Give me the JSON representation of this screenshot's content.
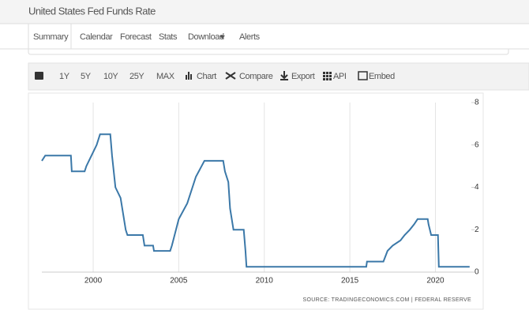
{
  "page": {
    "title": "United States Fed Funds Rate",
    "tabs": [
      "Summary",
      "Calendar",
      "Forecast",
      "Stats",
      "Download",
      "Alerts"
    ],
    "toolbar": [
      "1Y",
      "5Y",
      "10Y",
      "25Y",
      "MAX",
      "Chart",
      "Compare",
      "Export",
      "API",
      "Embed"
    ]
  },
  "chart_data": {
    "type": "line",
    "x": [
      1997,
      1997.2,
      1998.7,
      1998.75,
      1999.5,
      1999.6,
      1999.9,
      2000.2,
      2000.4,
      2001.0,
      2001.1,
      2001.3,
      2001.6,
      2001.9,
      2002.0,
      2002.9,
      2003.0,
      2003.5,
      2003.55,
      2004.5,
      2004.6,
      2005.0,
      2005.5,
      2006.0,
      2006.5,
      2007.6,
      2007.7,
      2007.9,
      2008.0,
      2008.2,
      2008.8,
      2008.9,
      2008.96,
      2015.96,
      2016.0,
      2016.96,
      2017.2,
      2017.5,
      2017.96,
      2018.2,
      2018.5,
      2018.75,
      2018.96,
      2019.55,
      2019.6,
      2019.75,
      2020.15,
      2020.2,
      2022.0
    ],
    "series": [
      {
        "color": "#3b78a8",
        "values": [
          5.25,
          5.5,
          5.5,
          4.75,
          4.75,
          5.0,
          5.5,
          6.0,
          6.5,
          6.5,
          5.5,
          4.0,
          3.5,
          2.0,
          1.75,
          1.75,
          1.25,
          1.25,
          1.0,
          1.0,
          1.25,
          2.5,
          3.25,
          4.5,
          5.25,
          5.25,
          4.75,
          4.25,
          3.0,
          2.0,
          2.0,
          1.0,
          0.25,
          0.25,
          0.5,
          0.5,
          1.0,
          1.25,
          1.5,
          1.75,
          2.0,
          2.25,
          2.5,
          2.5,
          2.25,
          1.75,
          1.75,
          0.25,
          0.25
        ]
      }
    ],
    "xlim": [
      1997,
      2022.1
    ],
    "ylim": [
      0,
      8
    ],
    "xticks": [
      2000,
      2005,
      2010,
      2015,
      2020
    ],
    "yticks": [
      0,
      2,
      4,
      6,
      8
    ],
    "grid": true,
    "source": "SOURCE: TRADINGECONOMICS.COM | FEDERAL RESERVE"
  }
}
